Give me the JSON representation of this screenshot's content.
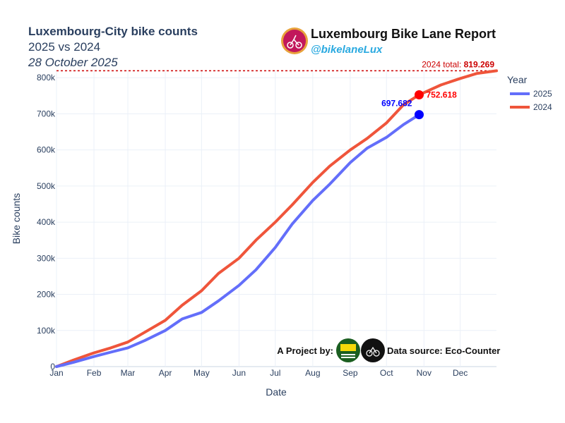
{
  "header": {
    "title": "Luxembourg-City bike counts",
    "subtitle": "2025 vs 2024",
    "date": "28 October 2025"
  },
  "brand": {
    "name": "Luxembourg Bike Lane Report",
    "handle": "@bikelaneLux",
    "logo_icon": "cyclist-logo-icon"
  },
  "footer": {
    "project_label": "A Project by:",
    "partner_logo_1_icon": "urban-justice-logo-icon",
    "partner_logo_2_icon": "siggy-logo-icon",
    "source_label": "Data source: Eco-Counter"
  },
  "chart_data": {
    "type": "line",
    "xlabel": "Date",
    "ylabel": "Bike counts",
    "x_range": [
      "2025-01-01",
      "2025-12-31"
    ],
    "ylim": [
      0,
      820000
    ],
    "x_ticks": [
      "Jan",
      "Feb",
      "Mar",
      "Apr",
      "May",
      "Jun",
      "Jul",
      "Aug",
      "Sep",
      "Oct",
      "Nov",
      "Dec"
    ],
    "y_ticks": [
      {
        "value": 0,
        "label": "0"
      },
      {
        "value": 100000,
        "label": "100k"
      },
      {
        "value": 200000,
        "label": "200k"
      },
      {
        "value": 300000,
        "label": "300k"
      },
      {
        "value": 400000,
        "label": "400k"
      },
      {
        "value": 500000,
        "label": "500k"
      },
      {
        "value": 600000,
        "label": "600k"
      },
      {
        "value": 700000,
        "label": "700k"
      },
      {
        "value": 800000,
        "label": "800k"
      }
    ],
    "grid": true,
    "legend": {
      "title": "Year",
      "position": "top-right"
    },
    "series": [
      {
        "name": "2025",
        "color": "#636efa",
        "x": [
          "2025-01-01",
          "2025-01-15",
          "2025-02-01",
          "2025-02-15",
          "2025-03-01",
          "2025-03-15",
          "2025-04-01",
          "2025-04-15",
          "2025-05-01",
          "2025-05-15",
          "2025-06-01",
          "2025-06-15",
          "2025-07-01",
          "2025-07-15",
          "2025-08-01",
          "2025-08-15",
          "2025-09-01",
          "2025-09-15",
          "2025-10-01",
          "2025-10-15",
          "2025-10-28"
        ],
        "values": [
          0,
          12000,
          28000,
          40000,
          52000,
          72000,
          100000,
          132000,
          150000,
          182000,
          225000,
          268000,
          330000,
          395000,
          460000,
          505000,
          565000,
          605000,
          635000,
          670000,
          697682
        ]
      },
      {
        "name": "2024",
        "color": "#ef553b",
        "x": [
          "2025-01-01",
          "2025-01-15",
          "2025-02-01",
          "2025-02-15",
          "2025-03-01",
          "2025-03-15",
          "2025-04-01",
          "2025-04-15",
          "2025-05-01",
          "2025-05-15",
          "2025-06-01",
          "2025-06-15",
          "2025-07-01",
          "2025-07-15",
          "2025-08-01",
          "2025-08-15",
          "2025-09-01",
          "2025-09-15",
          "2025-10-01",
          "2025-10-15",
          "2025-10-28",
          "2025-11-15",
          "2025-12-01",
          "2025-12-15",
          "2025-12-31"
        ],
        "values": [
          0,
          18000,
          38000,
          52000,
          68000,
          95000,
          128000,
          170000,
          210000,
          258000,
          300000,
          350000,
          400000,
          448000,
          510000,
          555000,
          600000,
          632000,
          675000,
          725000,
          752618,
          780000,
          798000,
          812000,
          819269
        ]
      }
    ],
    "annotations": [
      {
        "label": "697.682",
        "series": "2025",
        "date": "2025-10-28",
        "value": 697682,
        "color": "#0000ff"
      },
      {
        "label": "752.618",
        "series": "2024",
        "date": "2025-10-28",
        "value": 752618,
        "color": "#ff0000"
      }
    ],
    "reference_line": {
      "value": 819269,
      "prefix": "2024 total: ",
      "label": "819.269",
      "color": "#cc0000"
    }
  }
}
